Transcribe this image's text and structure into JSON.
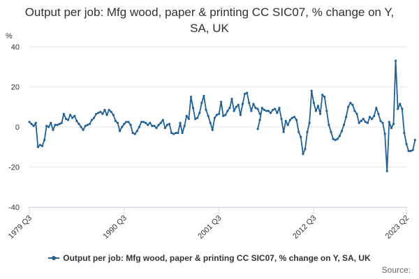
{
  "chart_data": {
    "type": "line",
    "title": "Output per job: Mfg wood, paper & printing CC SIC07, % change on Y, SA, UK",
    "y_unit": "%",
    "ylim": [
      -40,
      40
    ],
    "y_ticks": [
      "40",
      "20",
      "0",
      "-20",
      "-40"
    ],
    "x_tick_labels": [
      "1979 Q3",
      "1990 Q3",
      "2001 Q3",
      "2012 Q3",
      "2023 Q2"
    ],
    "legend_position": "bottom",
    "grid": true,
    "series": [
      {
        "name": "Output per job: Mfg wood, paper & printing CC SIC07, % change on Y, SA, UK",
        "color": "#206095",
        "segments": [
          {
            "start": "1979 Q3",
            "values": [
              2.5,
              1.5,
              0.5,
              2.0,
              -10.0,
              -9.0,
              -9.5,
              -6.5,
              0.5,
              0.0,
              2.0,
              -1.5,
              1.0,
              1.0,
              1.5,
              2.0,
              6.5,
              4.0,
              3.5,
              6.0,
              4.5,
              5.5,
              3.0,
              1.5,
              0.0,
              -1.5,
              0.5,
              1.0,
              1.5,
              3.5,
              4.5,
              6.5,
              7.0,
              7.5,
              6.5,
              8.5,
              6.0,
              8.5,
              7.5,
              6.0,
              3.0,
              2.0,
              -2.0,
              0.0,
              1.5,
              2.5,
              2.5,
              1.0,
              -3.0,
              -3.5,
              -2.0,
              0.0,
              2.5,
              2.5,
              2.0,
              1.0,
              2.0,
              0.5,
              0.5,
              -0.5,
              1.0,
              2.0,
              3.5,
              -0.5,
              1.0,
              1.5,
              -3.0,
              -3.5,
              -3.0,
              -3.0,
              2.0,
              -3.0,
              0.5,
              5.5,
              4.0,
              15.0,
              9.5,
              4.0,
              4.5,
              7.0,
              12.0,
              15.5,
              8.5,
              5.5,
              2.0,
              -1.5,
              4.5,
              6.0,
              6.5,
              12.5,
              5.5,
              6.0,
              8.0,
              9.5,
              14.0,
              8.0,
              10.0,
              11.0,
              6.0,
              11.5,
              16.5,
              17.0,
              12.0,
              8.0,
              11.5,
              9.5,
              9.0,
              6.5
            ]
          },
          {
            "start": "2006 Q1",
            "values": [
              -1.0,
              3.5,
              9.5,
              8.5,
              8.0,
              8.0,
              7.0,
              8.5,
              9.0,
              7.0,
              9.5,
              4.0,
              -2.5,
              3.0,
              1.0,
              3.5,
              4.5,
              5.0,
              3.5,
              -2.5,
              -5.0,
              -13.5,
              -11.0,
              -2.5,
              2.0,
              18.0,
              12.0,
              8.0,
              10.5,
              6.5,
              16.0,
              15.0,
              8.0,
              1.0,
              -2.5,
              -6.0,
              -6.5,
              -6.0,
              -4.5,
              -2.0,
              1.0,
              5.0,
              10.0,
              12.0,
              11.0,
              8.0,
              6.5,
              2.0,
              3.0,
              4.0,
              2.5,
              2.0,
              5.0,
              4.0,
              5.5,
              9.5,
              6.5,
              3.0,
              2.0,
              -3.5,
              -22.0,
              2.5,
              -0.5,
              1.5,
              33.0,
              9.0,
              11.5,
              9.0,
              -3.0,
              -8.5,
              -12.0,
              -12.0,
              -11.5,
              -6.5
            ]
          }
        ]
      }
    ],
    "legend": {
      "label": "Output per job: Mfg wood, paper & printing CC SIC07, % change on Y, SA, UK"
    },
    "source_label": "Source:"
  }
}
